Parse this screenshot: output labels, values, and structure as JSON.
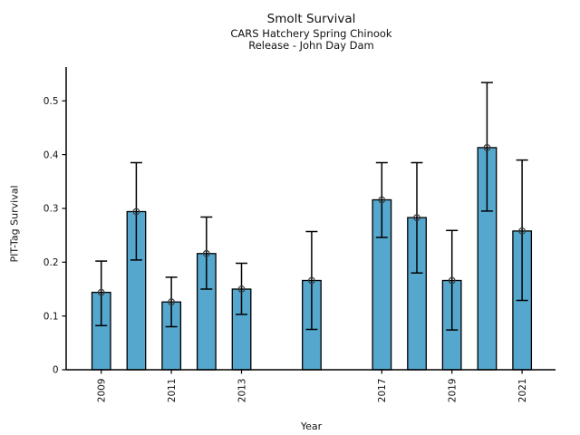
{
  "chart_data": {
    "type": "bar",
    "title": "Smolt Survival",
    "subtitle_line1": "CARS Hatchery Spring Chinook",
    "subtitle_line2": "Release - John Day Dam",
    "xlabel": "Year",
    "ylabel": "PIT-Tag Survival",
    "categories": [
      2009,
      2010,
      2011,
      2012,
      2013,
      2015,
      2017,
      2018,
      2019,
      2020,
      2021
    ],
    "series": [
      {
        "name": "PIT-Tag Survival",
        "values": [
          0.144,
          0.294,
          0.126,
          0.216,
          0.15,
          0.166,
          0.316,
          0.283,
          0.166,
          0.413,
          0.258
        ],
        "error_low": [
          0.082,
          0.204,
          0.08,
          0.15,
          0.103,
          0.075,
          0.246,
          0.18,
          0.074,
          0.295,
          0.129
        ],
        "error_high": [
          0.202,
          0.385,
          0.172,
          0.284,
          0.198,
          0.257,
          0.385,
          0.385,
          0.259,
          0.534,
          0.39
        ]
      }
    ],
    "xtick_labels": [
      "2009",
      "2011",
      "2013",
      "2017",
      "2019",
      "2021"
    ],
    "ytick_labels": [
      "0",
      "0.1",
      "0.2",
      "0.3",
      "0.4",
      "0.5"
    ],
    "xlim": [
      2008,
      2022
    ],
    "ylim": [
      0,
      0.563
    ],
    "grid": false,
    "legend": "none",
    "x_tick_rotation_deg": 90,
    "bar_color": "#55A7CE",
    "bar_edge_color": "#000000",
    "error_bar_color": "#000000",
    "marker": "open-circle",
    "marker_color": "#3a3a3a"
  }
}
